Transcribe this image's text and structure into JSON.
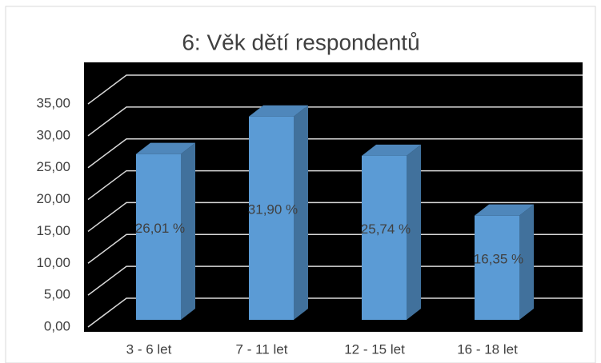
{
  "chart_data": {
    "type": "bar",
    "title": "6: Věk dětí respondentů",
    "categories": [
      "3 - 6 let",
      "7 - 11 let",
      "12 - 15 let",
      "16 - 18 let"
    ],
    "values": [
      26.01,
      31.9,
      25.74,
      16.35
    ],
    "value_labels": [
      "26,01  %",
      "31,90  %",
      "25,74  %",
      "16,35  %"
    ],
    "color": "#5b9bd5",
    "ylim": [
      0,
      35
    ],
    "yticks": [
      {
        "value": 0,
        "label": "0,00"
      },
      {
        "value": 5,
        "label": "5,00"
      },
      {
        "value": 10,
        "label": "10,00"
      },
      {
        "value": 15,
        "label": "15,00"
      },
      {
        "value": 20,
        "label": "20,00"
      },
      {
        "value": 25,
        "label": "25,00"
      },
      {
        "value": 30,
        "label": "30,00"
      },
      {
        "value": 35,
        "label": "35,00"
      }
    ],
    "grid": true
  }
}
